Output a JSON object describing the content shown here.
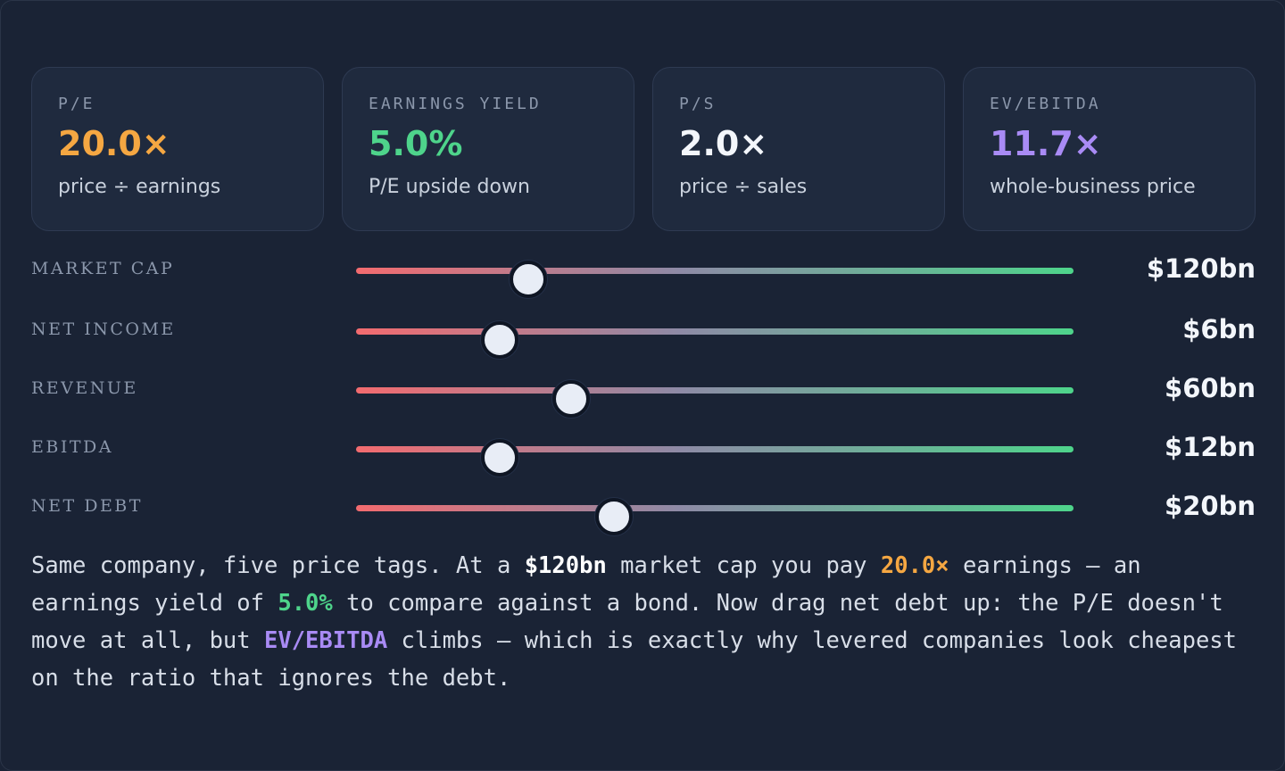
{
  "colors": {
    "background": "#1a2335",
    "card": "#1f2a3e",
    "orange": "#f5a742",
    "green": "#4ed48b",
    "white": "#f3f6fb",
    "purple": "#a98bf5",
    "slider_low": "#f36b6f",
    "slider_high": "#4ed48b"
  },
  "metrics": [
    {
      "label": "P/E",
      "value": "20.0×",
      "desc": "price ÷ earnings",
      "color": "#f5a742"
    },
    {
      "label": "EARNINGS YIELD",
      "value": "5.0%",
      "desc": "P/E upside down",
      "color": "#4ed48b"
    },
    {
      "label": "P/S",
      "value": "2.0×",
      "desc": "price ÷ sales",
      "color": "#f3f6fb"
    },
    {
      "label": "EV/EBITDA",
      "value": "11.7×",
      "desc": "whole-business price",
      "color": "#a98bf5"
    }
  ],
  "sliders": [
    {
      "label": "MARKET CAP",
      "value": "$120bn",
      "level": 0.24
    },
    {
      "label": "NET INCOME",
      "value": "$6bn",
      "level": 0.2
    },
    {
      "label": "REVENUE",
      "value": "$60bn",
      "level": 0.3
    },
    {
      "label": "EBITDA",
      "value": "$12bn",
      "level": 0.2
    },
    {
      "label": "NET DEBT",
      "value": "$20bn",
      "level": 0.36
    }
  ],
  "explanation": {
    "p1": "Same company, five price tags. At a ",
    "mcap": "$120bn",
    "p2": " market cap you pay ",
    "pe": "20.0×",
    "p3": " earnings — an earnings yield of ",
    "ey": "5.0%",
    "p4": " to compare against a bond. Now drag net debt up: the P/E doesn't move at all, but ",
    "ev": "EV/EBITDA",
    "p5": " climbs — which is exactly why levered companies look cheapest on the ratio that ignores the debt."
  }
}
